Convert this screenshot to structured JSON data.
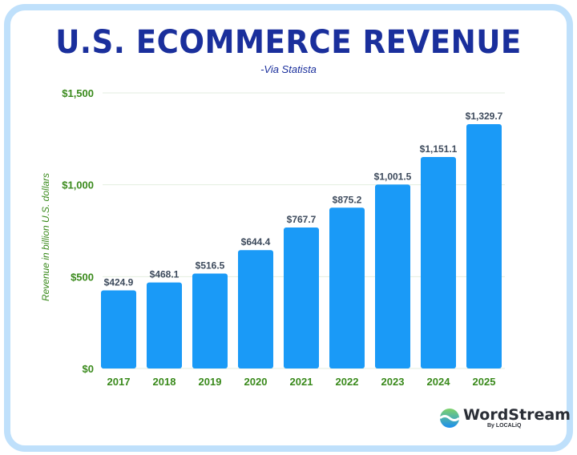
{
  "chart_data": {
    "type": "bar",
    "title": "U.S. ECOMMERCE REVENUE",
    "subtitle": "-Via Statista",
    "ylabel": "Revenue in billion U.S. dollars",
    "xlabel": "",
    "categories": [
      "2017",
      "2018",
      "2019",
      "2020",
      "2021",
      "2022",
      "2023",
      "2024",
      "2025"
    ],
    "values": [
      424.9,
      468.1,
      516.5,
      644.4,
      767.7,
      875.2,
      1001.5,
      1151.1,
      1329.7
    ],
    "data_labels": [
      "$424.9",
      "$468.1",
      "$516.5",
      "$644.4",
      "$767.7",
      "$875.2",
      "$1,001.5",
      "$1,151.1",
      "$1,329.7"
    ],
    "yticks": [
      0,
      500,
      1000,
      1500
    ],
    "ytick_labels": [
      "$0",
      "$500",
      "$1,000",
      "$1,500"
    ],
    "ylim": [
      0,
      1500
    ],
    "grid": true,
    "colors": {
      "bar": "#1a9af7",
      "axis_text": "#3a8a1c",
      "title": "#1a2f9c",
      "data_label": "#3d4a5c",
      "frame": "#bfe0fb"
    }
  },
  "logo": {
    "name": "WordStream",
    "byline": "By LOCALiQ"
  }
}
